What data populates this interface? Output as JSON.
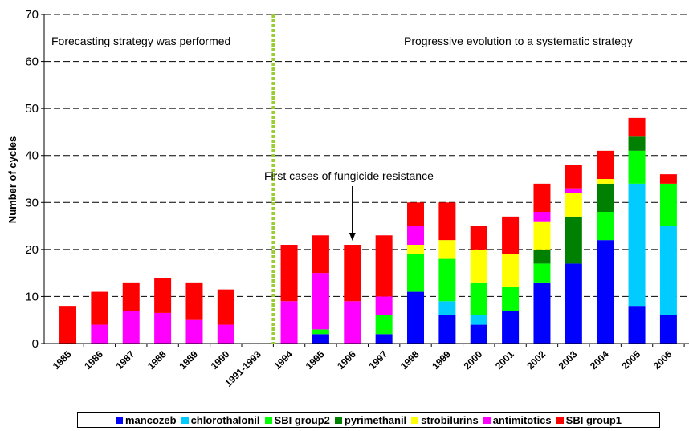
{
  "chart_data": {
    "type": "bar",
    "stacked": true,
    "ylabel": "Number of cycles",
    "xlabel": "",
    "ylim": [
      0,
      70
    ],
    "yticks": [
      0,
      10,
      20,
      30,
      40,
      50,
      60,
      70
    ],
    "grid": "horizontal dashed",
    "legend_position": "bottom",
    "categories": [
      "1985",
      "1986",
      "1987",
      "1988",
      "1989",
      "1990",
      "1991-1993",
      "1994",
      "1995",
      "1996",
      "1997",
      "1998",
      "1999",
      "2000",
      "2001",
      "2002",
      "2003",
      "2004",
      "2005",
      "2006"
    ],
    "series": [
      {
        "name": "mancozeb",
        "color": "#0000ff",
        "values": [
          0,
          0,
          0,
          0,
          0,
          0,
          0,
          0,
          2,
          0,
          2,
          11,
          6,
          4,
          7,
          13,
          17,
          22,
          8,
          6
        ]
      },
      {
        "name": "chlorothalonil",
        "color": "#00ccff",
        "values": [
          0,
          0,
          0,
          0,
          0,
          0,
          0,
          0,
          0,
          0,
          0,
          0,
          3,
          2,
          0,
          0,
          0,
          0,
          26,
          19
        ]
      },
      {
        "name": "SBI group2",
        "color": "#00ff00",
        "values": [
          0,
          0,
          0,
          0,
          0,
          0,
          0,
          0,
          1,
          0,
          4,
          8,
          9,
          7,
          5,
          4,
          0,
          6,
          7,
          9
        ]
      },
      {
        "name": "pyrimethanil",
        "color": "#008000",
        "values": [
          0,
          0,
          0,
          0,
          0,
          0,
          0,
          0,
          0,
          0,
          0,
          0,
          0,
          0,
          0,
          3,
          10,
          6,
          3,
          0
        ]
      },
      {
        "name": "strobilurins",
        "color": "#ffff00",
        "values": [
          0,
          0,
          0,
          0,
          0,
          0,
          0,
          0,
          0,
          0,
          0,
          2,
          4,
          7,
          7,
          6,
          5,
          1,
          0,
          0
        ]
      },
      {
        "name": "antimitotics",
        "color": "#ff00ff",
        "values": [
          0,
          4,
          7,
          6.5,
          5,
          4,
          0,
          9,
          12,
          9,
          4,
          4,
          0,
          0,
          0,
          2,
          1,
          0,
          0,
          0
        ]
      },
      {
        "name": "SBI group1",
        "color": "#ff0000",
        "values": [
          8,
          7,
          6,
          7.5,
          8,
          7.5,
          0,
          12,
          8,
          12,
          13,
          5,
          8,
          5,
          8,
          6,
          5,
          6,
          4,
          2
        ]
      }
    ],
    "divider_after": "1991-1993",
    "annotations": [
      {
        "text": "Forecasting strategy was performed"
      },
      {
        "text": "Progressive evolution to a systematic strategy"
      },
      {
        "text": "First cases of fungicide resistance",
        "points_to": "1996"
      }
    ]
  }
}
